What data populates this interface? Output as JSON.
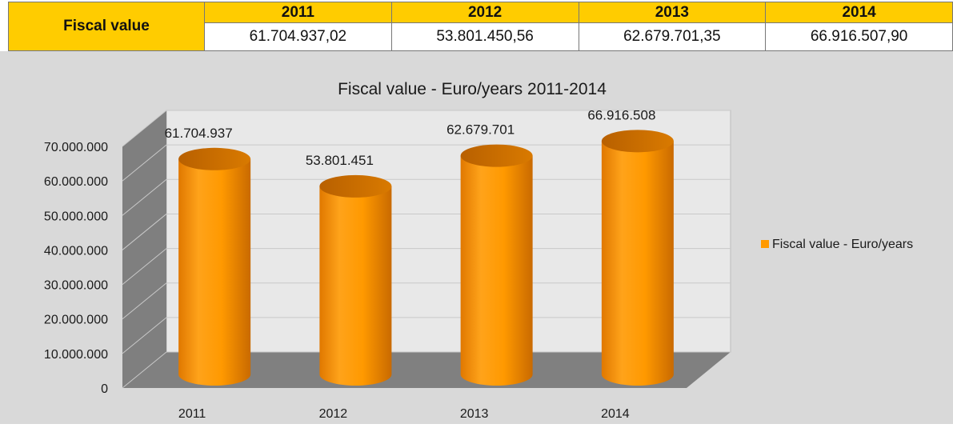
{
  "table": {
    "row_label": "Fiscal value",
    "years": [
      "2011",
      "2012",
      "2013",
      "2014"
    ],
    "values": [
      "61.704.937,02",
      "53.801.450,56",
      "62.679.701,35",
      "66.916.507,90"
    ]
  },
  "chart_data": {
    "type": "bar",
    "title": "Fiscal value - Euro/years 2011-2014",
    "categories": [
      "2011",
      "2012",
      "2013",
      "2014"
    ],
    "series": [
      {
        "name": "Fiscal value - Euro/years",
        "values": [
          61704937,
          53801451,
          62679701,
          66916508
        ],
        "labels": [
          "61.704.937",
          "53.801.451",
          "62.679.701",
          "66.916.508"
        ],
        "color": "#ff9900"
      }
    ],
    "yticks": [
      "0",
      "10.000.000",
      "20.000.000",
      "30.000.000",
      "40.000.000",
      "50.000.000",
      "60.000.000",
      "70.000.000"
    ],
    "ylim": [
      0,
      70000000
    ],
    "grid": true,
    "legend_position": "right",
    "style": "3d-cylinder"
  }
}
